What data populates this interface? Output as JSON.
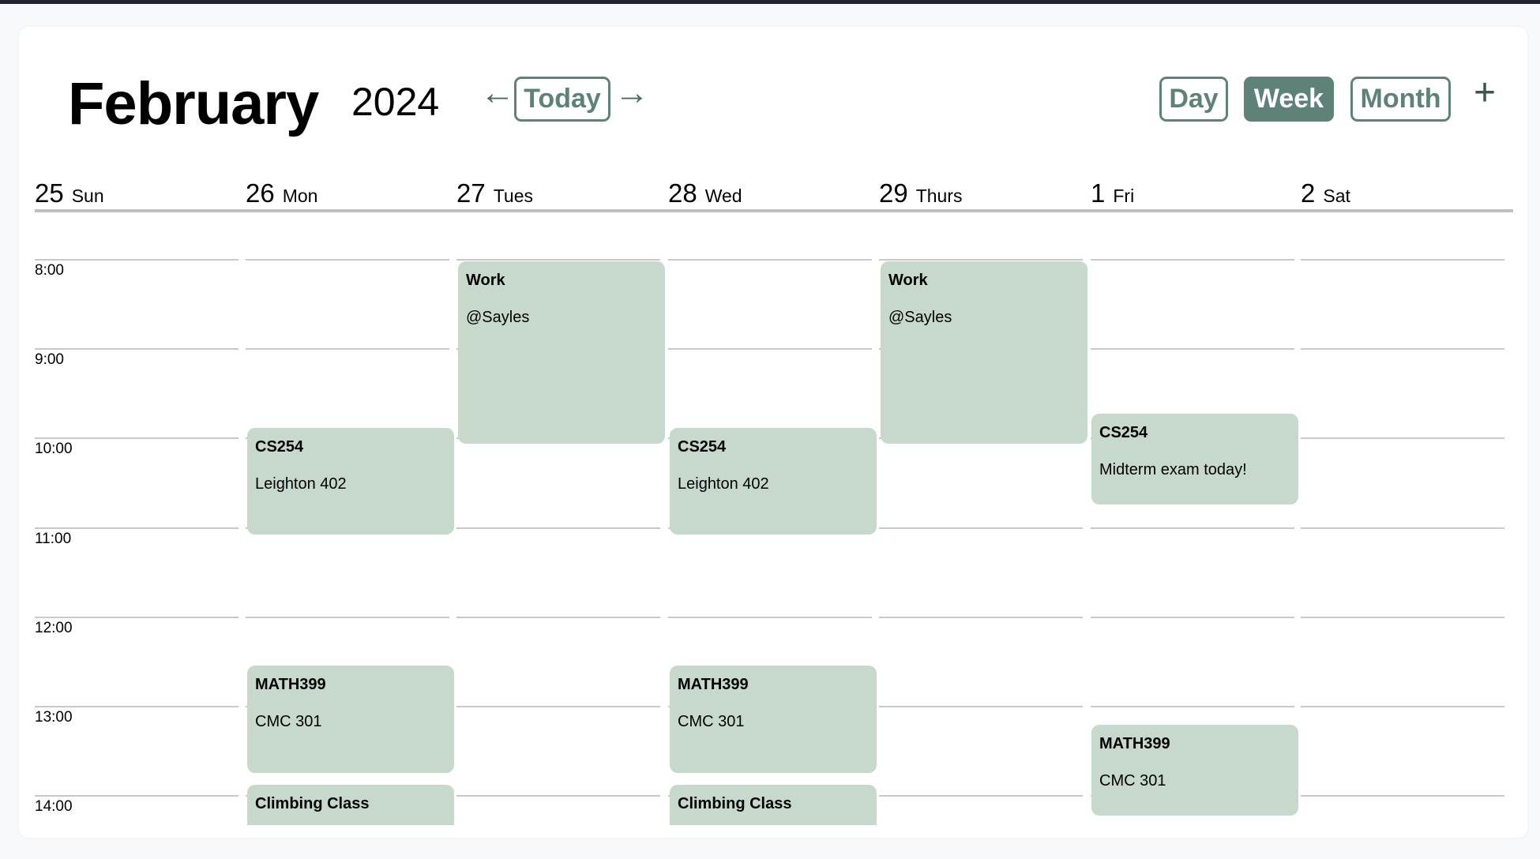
{
  "header": {
    "month": "February",
    "year": "2024",
    "prev_icon": "arrow-left-icon",
    "next_icon": "arrow-right-icon",
    "today_label": "Today",
    "prev_glyph": "←",
    "next_glyph": "→",
    "views": [
      "Day",
      "Week",
      "Month"
    ],
    "active_view": "Week",
    "add_glyph": "+"
  },
  "colors": {
    "accent": "#5f8278",
    "event_bg": "#c6d9cc"
  },
  "days": [
    {
      "num": "25",
      "name": "Sun"
    },
    {
      "num": "26",
      "name": "Mon"
    },
    {
      "num": "27",
      "name": "Tues"
    },
    {
      "num": "28",
      "name": "Wed"
    },
    {
      "num": "29",
      "name": "Thurs"
    },
    {
      "num": "1",
      "name": "Fri"
    },
    {
      "num": "2",
      "name": "Sat"
    }
  ],
  "hours": [
    "8:00",
    "9:00",
    "10:00",
    "11:00",
    "12:00",
    "13:00",
    "14:00"
  ],
  "events": [
    {
      "day": "Mon",
      "title": "CS254",
      "location": "Leighton 402"
    },
    {
      "day": "Tues",
      "title": "Work",
      "location": "@Sayles"
    },
    {
      "day": "Wed",
      "title": "CS254",
      "location": "Leighton 402"
    },
    {
      "day": "Thurs",
      "title": "Work",
      "location": "@Sayles"
    },
    {
      "day": "Fri",
      "title": "CS254",
      "location": "Midterm exam today!"
    },
    {
      "day": "Mon",
      "title": "MATH399",
      "location": "CMC 301"
    },
    {
      "day": "Wed",
      "title": "MATH399",
      "location": "CMC 301"
    },
    {
      "day": "Fri",
      "title": "MATH399",
      "location": "CMC 301"
    },
    {
      "day": "Mon",
      "title": "Climbing Class",
      "location": ""
    },
    {
      "day": "Wed",
      "title": "Climbing Class",
      "location": ""
    }
  ]
}
